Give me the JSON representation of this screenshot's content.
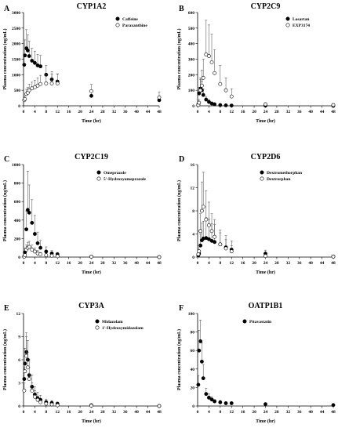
{
  "chart_data": [
    {
      "panel_label": "A",
      "title": "CYP1A2",
      "type": "scatter",
      "xlabel": "Time (hr)",
      "ylabel": "Plasma concentration (ng/mL)",
      "xlim": [
        0,
        48
      ],
      "ylim": [
        0,
        3000
      ],
      "xticks": [
        "0",
        "4",
        "8",
        "12",
        "16",
        "20",
        "24",
        "28",
        "32",
        "36",
        "40",
        "44",
        "48"
      ],
      "yticks": [
        "0",
        "500",
        "1000",
        "1500",
        "2000",
        "2500",
        "3000"
      ],
      "legend_position": "top-right",
      "series": [
        {
          "name": "Caffeine",
          "marker": "filled",
          "x": [
            0.25,
            0.5,
            1,
            1.5,
            2,
            3,
            4,
            5,
            6,
            8,
            10,
            12,
            24,
            48
          ],
          "y": [
            1320,
            1620,
            1850,
            1780,
            1600,
            1450,
            1380,
            1300,
            1270,
            1000,
            850,
            780,
            320,
            180
          ],
          "err": [
            350,
            500,
            600,
            500,
            480,
            400,
            380,
            350,
            350,
            300,
            250,
            250,
            150,
            120
          ]
        },
        {
          "name": "Paraxanthine",
          "marker": "open",
          "x": [
            0.25,
            0.5,
            1,
            1.5,
            2,
            3,
            4,
            5,
            6,
            8,
            10,
            12,
            24,
            48
          ],
          "y": [
            180,
            220,
            380,
            420,
            500,
            560,
            600,
            650,
            700,
            720,
            720,
            720,
            470,
            270
          ],
          "err": [
            80,
            100,
            150,
            170,
            200,
            200,
            220,
            250,
            280,
            280,
            300,
            300,
            220,
            180
          ]
        }
      ]
    },
    {
      "panel_label": "B",
      "title": "CYP2C9",
      "type": "scatter",
      "xlabel": "Time (hr)",
      "ylabel": "Plasma concentration (ng/mL)",
      "xlim": [
        0,
        48
      ],
      "ylim": [
        0,
        600
      ],
      "xticks": [
        "0",
        "4",
        "8",
        "12",
        "16",
        "20",
        "24",
        "28",
        "32",
        "36",
        "40",
        "44",
        "48"
      ],
      "yticks": [
        "0",
        "100",
        "200",
        "300",
        "400",
        "500",
        "600"
      ],
      "legend_position": "top-right",
      "series": [
        {
          "name": "Losartan",
          "marker": "filled",
          "x": [
            0.25,
            0.5,
            1,
            1.5,
            2,
            3,
            4,
            5,
            6,
            8,
            10,
            12,
            24,
            48
          ],
          "y": [
            10,
            80,
            110,
            100,
            70,
            40,
            25,
            15,
            10,
            5,
            3,
            2,
            1,
            0
          ],
          "err": [
            10,
            40,
            60,
            60,
            40,
            20,
            15,
            10,
            5,
            3,
            2,
            1,
            1,
            0
          ]
        },
        {
          "name": "EXP3174",
          "marker": "open",
          "x": [
            0.25,
            0.5,
            1,
            1.5,
            2,
            3,
            4,
            5,
            6,
            8,
            10,
            12,
            24,
            48
          ],
          "y": [
            5,
            20,
            100,
            130,
            180,
            330,
            320,
            280,
            210,
            140,
            100,
            60,
            10,
            5
          ],
          "err": [
            5,
            20,
            80,
            100,
            120,
            220,
            200,
            180,
            150,
            120,
            80,
            50,
            10,
            5
          ]
        }
      ]
    },
    {
      "panel_label": "C",
      "title": "CYP2C19",
      "type": "scatter",
      "xlabel": "Time (hr)",
      "ylabel": "Plasma concentration (ng/mL)",
      "xlim": [
        0,
        48
      ],
      "ylim": [
        0,
        1000
      ],
      "xticks": [
        "0",
        "4",
        "8",
        "12",
        "16",
        "20",
        "24",
        "28",
        "32",
        "36",
        "40",
        "44",
        "48"
      ],
      "yticks": [
        "0",
        "200",
        "400",
        "600",
        "800",
        "1000"
      ],
      "legend_position": "top-right",
      "series": [
        {
          "name": "Omeprazole",
          "marker": "filled",
          "x": [
            0.25,
            0.5,
            1,
            1.5,
            2,
            3,
            4,
            5,
            6,
            8,
            10,
            12,
            24,
            48
          ],
          "y": [
            10,
            50,
            300,
            510,
            480,
            370,
            250,
            150,
            100,
            60,
            40,
            30,
            5,
            0
          ],
          "err": [
            10,
            50,
            200,
            420,
            300,
            250,
            200,
            120,
            80,
            50,
            30,
            20,
            5,
            0
          ]
        },
        {
          "name": "5'-Hydroxyomeprazole",
          "marker": "open",
          "x": [
            0.25,
            0.5,
            1,
            1.5,
            2,
            3,
            4,
            5,
            6,
            8,
            10,
            12,
            24,
            48
          ],
          "y": [
            5,
            20,
            80,
            100,
            110,
            80,
            60,
            40,
            30,
            20,
            15,
            10,
            5,
            0
          ],
          "err": [
            5,
            20,
            50,
            60,
            60,
            50,
            40,
            30,
            20,
            15,
            10,
            10,
            5,
            0
          ]
        }
      ]
    },
    {
      "panel_label": "D",
      "title": "CYP2D6",
      "type": "scatter",
      "xlabel": "Time (hr)",
      "ylabel": "Plasma concentration (ng/mL)",
      "xlim": [
        0,
        48
      ],
      "ylim": [
        0,
        16
      ],
      "xticks": [
        "0",
        "4",
        "8",
        "12",
        "16",
        "20",
        "24",
        "28",
        "32",
        "36",
        "40",
        "44",
        "48"
      ],
      "yticks": [
        "0",
        "4",
        "8",
        "12",
        "16"
      ],
      "legend_position": "top-right",
      "series": [
        {
          "name": "Dextromethorphan",
          "marker": "filled",
          "x": [
            0.25,
            0.5,
            1,
            1.5,
            2,
            3,
            4,
            5,
            6,
            8,
            10,
            12,
            24,
            48
          ],
          "y": [
            0.3,
            0.6,
            2.0,
            2.9,
            3.2,
            3.3,
            3.1,
            2.8,
            2.6,
            2.2,
            1.7,
            1.3,
            0.6,
            0.1
          ],
          "err": [
            0.3,
            0.6,
            2,
            3,
            3,
            3.5,
            3.5,
            3,
            3,
            2.5,
            2,
            1.5,
            0.6,
            0.1
          ]
        },
        {
          "name": "Dextrorphan",
          "marker": "open",
          "x": [
            0.25,
            0.5,
            1,
            1.5,
            2,
            3,
            4,
            5,
            6,
            8,
            10,
            12,
            24,
            48
          ],
          "y": [
            0.5,
            1.0,
            4.5,
            8.0,
            8.7,
            6.5,
            5.5,
            4.5,
            3.5,
            2.2,
            1.5,
            1.0,
            0.2,
            0.1
          ],
          "err": [
            0.5,
            1,
            3,
            5,
            6,
            5,
            4,
            3,
            3,
            2,
            1.5,
            1,
            0.3,
            0.1
          ]
        }
      ]
    },
    {
      "panel_label": "E",
      "title": "CYP3A",
      "type": "scatter",
      "xlabel": "Time (hr)",
      "ylabel": "Plasma concentration (ng/mL)",
      "xlim": [
        0,
        48
      ],
      "ylim": [
        0,
        12
      ],
      "xticks": [
        "0",
        "4",
        "8",
        "12",
        "16",
        "20",
        "24",
        "28",
        "32",
        "36",
        "40",
        "44",
        "48"
      ],
      "yticks": [
        "0",
        "3",
        "6",
        "9",
        "12"
      ],
      "legend_position": "top-right",
      "series": [
        {
          "name": "Midazolam",
          "marker": "filled",
          "x": [
            0.25,
            0.5,
            1,
            1.5,
            2,
            3,
            4,
            5,
            6,
            8,
            10,
            12,
            24,
            48
          ],
          "y": [
            3.5,
            5.5,
            7.0,
            6.0,
            4.0,
            2.5,
            1.5,
            1.0,
            0.8,
            0.5,
            0.4,
            0.3,
            0.1,
            0
          ],
          "err": [
            1.5,
            2,
            2.5,
            2.5,
            2,
            1.5,
            1,
            0.8,
            0.6,
            0.4,
            0.3,
            0.2,
            0.1,
            0
          ]
        },
        {
          "name": "1'-Hydroxymidazolam",
          "marker": "open",
          "x": [
            0.25,
            0.5,
            1,
            1.5,
            2,
            3,
            4,
            5,
            6,
            8,
            10,
            12,
            24,
            48
          ],
          "y": [
            2.0,
            4.5,
            6.5,
            5.0,
            3.5,
            2.0,
            1.2,
            0.8,
            0.5,
            0.3,
            0.2,
            0.1,
            0.05,
            0
          ],
          "err": [
            1,
            2,
            2.5,
            2,
            1.5,
            1,
            0.8,
            0.5,
            0.3,
            0.2,
            0.1,
            0.1,
            0.05,
            0
          ]
        }
      ]
    },
    {
      "panel_label": "F",
      "title": "OATP1B1",
      "type": "scatter",
      "xlabel": "Time (hr)",
      "ylabel": "Plasma concentration (ng/mL)",
      "xlim": [
        0,
        48
      ],
      "ylim": [
        0,
        100
      ],
      "xticks": [
        "0",
        "4",
        "8",
        "12",
        "16",
        "20",
        "24",
        "28",
        "32",
        "36",
        "40",
        "44",
        "48"
      ],
      "yticks": [
        "0",
        "20",
        "40",
        "60",
        "80",
        "100"
      ],
      "legend_position": "top-right",
      "series": [
        {
          "name": "Pitavastatin",
          "marker": "filled",
          "x": [
            0.25,
            0.5,
            1,
            1.5,
            2,
            3,
            4,
            5,
            6,
            8,
            10,
            12,
            24,
            48
          ],
          "y": [
            23,
            60,
            70,
            48,
            30,
            13,
            9,
            7,
            5,
            4,
            3,
            3,
            2,
            1
          ],
          "err": [
            10,
            22,
            23,
            20,
            15,
            6,
            4,
            3,
            2,
            2,
            1,
            1,
            1,
            0.5
          ]
        }
      ]
    }
  ]
}
